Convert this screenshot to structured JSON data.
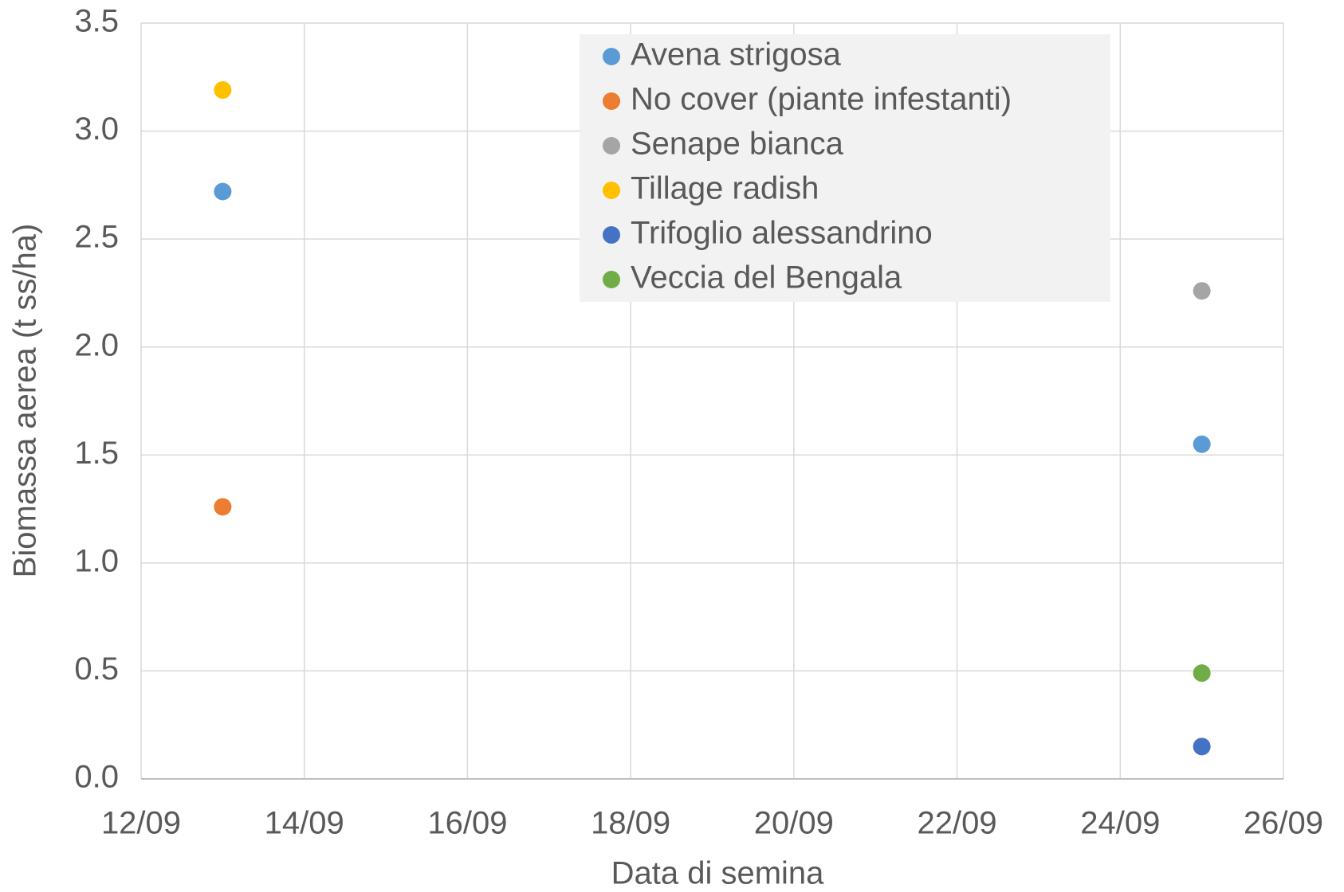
{
  "chart_data": {
    "type": "scatter",
    "xlabel": "Data di semina",
    "ylabel": "Biomassa aerea (t ss/ha)",
    "xlim": [
      "12/09",
      "26/09"
    ],
    "xticks": [
      "12/09",
      "14/09",
      "16/09",
      "18/09",
      "20/09",
      "22/09",
      "24/09",
      "26/09"
    ],
    "ylim": [
      0,
      3.5
    ],
    "yticks": [
      {
        "value": 0,
        "label": "0.0"
      },
      0.5,
      {
        "value": 1,
        "label": "1.0"
      },
      1.5,
      {
        "value": 2,
        "label": "2.0"
      },
      2.5,
      {
        "value": 3,
        "label": "3.0"
      },
      3.5
    ],
    "grid": true,
    "legend": "top",
    "series": [
      {
        "name": "Avena strigosa",
        "color": "#5b9bd5",
        "x": [
          "13/09",
          "25/09"
        ],
        "values": [
          2.72,
          1.55
        ]
      },
      {
        "name": "No cover (piante infestanti)",
        "color": "#ed7d31",
        "x": [
          "13/09"
        ],
        "values": [
          1.26
        ]
      },
      {
        "name": "Senape bianca",
        "color": "#a5a5a5",
        "x": [
          "25/09"
        ],
        "values": [
          2.26
        ]
      },
      {
        "name": "Tillage radish",
        "color": "#ffc000",
        "x": [
          "13/09"
        ],
        "values": [
          3.19
        ]
      },
      {
        "name": "Trifoglio alessandrino",
        "color": "#4472c4",
        "x": [
          "25/09"
        ],
        "values": [
          0.15
        ]
      },
      {
        "name": "Veccia del Bengala",
        "color": "#70ad47",
        "x": [
          "25/09"
        ],
        "values": [
          0.49
        ]
      }
    ]
  }
}
